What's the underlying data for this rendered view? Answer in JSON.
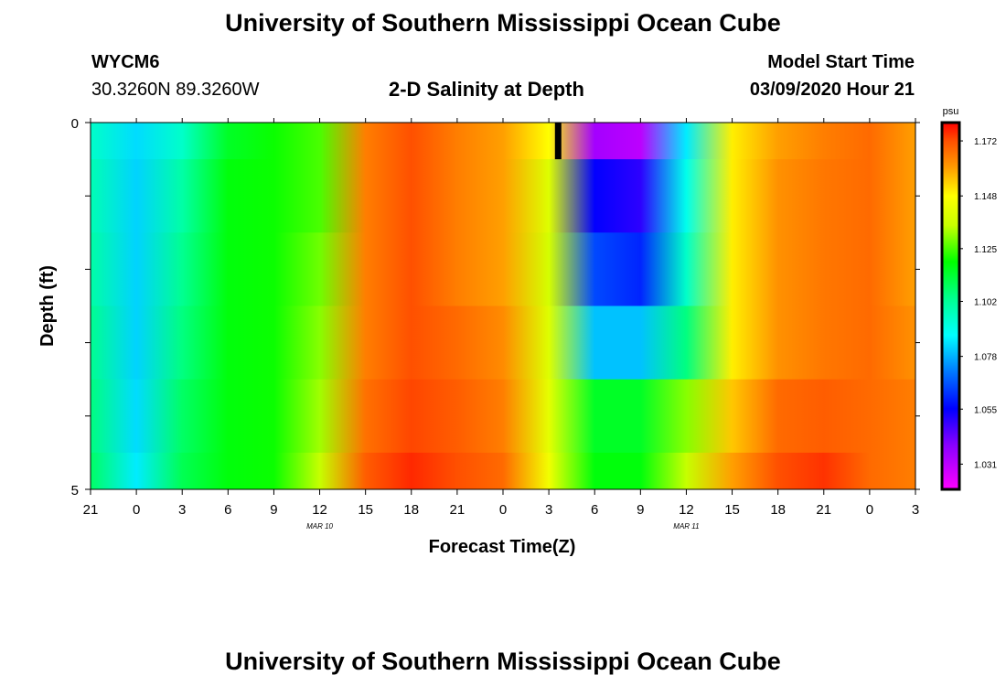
{
  "header": {
    "title": "University of Southern Mississippi Ocean Cube",
    "footer_title": "University of Southern Mississippi Ocean Cube",
    "station_id": "WYCM6",
    "location": "30.3260N 89.3260W",
    "plot_title": "2-D Salinity at Depth",
    "model_start_label": "Model Start Time",
    "model_start_value": "03/09/2020 Hour 21"
  },
  "chart_data": {
    "type": "heatmap",
    "title": "2-D Salinity at Depth",
    "xlabel": "Forecast Time(Z)",
    "ylabel": "Depth (ft)",
    "ylim": [
      0,
      5
    ],
    "y_tick_labels": [
      "0",
      "5"
    ],
    "x_tick_labels": [
      "21",
      "0",
      "3",
      "6",
      "9",
      "12",
      "15",
      "18",
      "21",
      "0",
      "3",
      "6",
      "9",
      "12",
      "15",
      "18",
      "21",
      "0",
      "3"
    ],
    "date_labels": [
      {
        "text": "MAR 10",
        "tick_index": 5
      },
      {
        "text": "MAR 11",
        "tick_index": 13
      }
    ],
    "colorbar": {
      "unit": "psu",
      "min": 1.02,
      "max": 1.18,
      "ticks": [
        "1.172",
        "1.148",
        "1.125",
        "1.102",
        "1.078",
        "1.055",
        "1.031"
      ]
    },
    "forecast_hours": [
      0,
      3,
      6,
      9,
      12,
      15,
      18,
      21,
      24,
      27,
      30,
      33,
      36,
      39,
      42,
      45,
      48,
      51,
      54
    ],
    "depth_rows": [
      {
        "depth_range": [
          0.0,
          0.5
        ],
        "values": [
          1.095,
          1.083,
          1.095,
          1.115,
          1.12,
          1.125,
          1.165,
          1.172,
          1.165,
          1.16,
          1.148,
          1.035,
          1.031,
          1.085,
          1.15,
          1.16,
          1.165,
          1.168,
          1.16
        ]
      },
      {
        "depth_range": [
          0.5,
          1.5
        ],
        "values": [
          1.098,
          1.082,
          1.1,
          1.118,
          1.12,
          1.125,
          1.165,
          1.172,
          1.165,
          1.16,
          1.14,
          1.055,
          1.05,
          1.09,
          1.15,
          1.162,
          1.166,
          1.168,
          1.16
        ]
      },
      {
        "depth_range": [
          1.5,
          2.5
        ],
        "values": [
          1.1,
          1.082,
          1.103,
          1.118,
          1.12,
          1.128,
          1.165,
          1.172,
          1.165,
          1.16,
          1.138,
          1.065,
          1.06,
          1.095,
          1.15,
          1.162,
          1.166,
          1.168,
          1.16
        ]
      },
      {
        "depth_range": [
          2.5,
          3.5
        ],
        "values": [
          1.103,
          1.082,
          1.105,
          1.118,
          1.12,
          1.13,
          1.165,
          1.172,
          1.168,
          1.163,
          1.14,
          1.08,
          1.08,
          1.105,
          1.15,
          1.162,
          1.166,
          1.168,
          1.162
        ]
      },
      {
        "depth_range": [
          3.5,
          4.5
        ],
        "values": [
          1.105,
          1.083,
          1.108,
          1.118,
          1.12,
          1.132,
          1.167,
          1.173,
          1.17,
          1.165,
          1.142,
          1.115,
          1.115,
          1.13,
          1.155,
          1.168,
          1.17,
          1.168,
          1.165
        ]
      },
      {
        "depth_range": [
          4.5,
          5.0
        ],
        "values": [
          1.108,
          1.085,
          1.11,
          1.118,
          1.12,
          1.135,
          1.17,
          1.176,
          1.172,
          1.168,
          1.145,
          1.118,
          1.118,
          1.135,
          1.16,
          1.172,
          1.175,
          1.168,
          1.165
        ]
      }
    ]
  }
}
